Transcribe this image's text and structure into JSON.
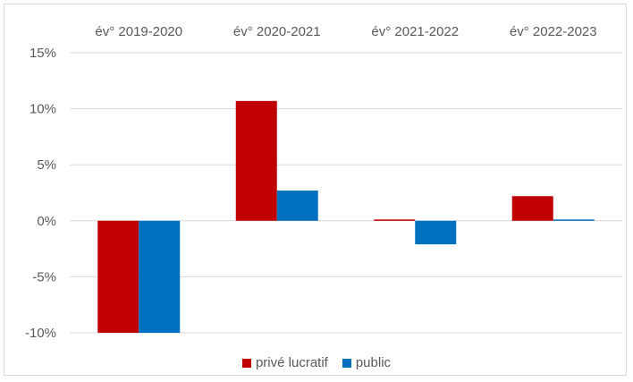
{
  "chart_data": {
    "type": "bar",
    "categories": [
      "év° 2019-2020",
      "év° 2020-2021",
      "év° 2021-2022",
      "év° 2022-2023"
    ],
    "series": [
      {
        "name": "privé lucratif",
        "color": "#c00000",
        "values": [
          -10.0,
          10.7,
          0.1,
          2.2
        ]
      },
      {
        "name": "public",
        "color": "#0070c0",
        "values": [
          -10.0,
          2.7,
          -2.1,
          0.1
        ]
      }
    ],
    "ylim": [
      -10,
      15
    ],
    "yticks": [
      -10,
      -5,
      0,
      5,
      10,
      15
    ],
    "ytick_labels": [
      "-10%",
      "-5%",
      "0%",
      "5%",
      "10%",
      "15%"
    ],
    "grid": true,
    "legend_position": "bottom",
    "category_label_position": "top",
    "title": "",
    "xlabel": "",
    "ylabel": ""
  }
}
